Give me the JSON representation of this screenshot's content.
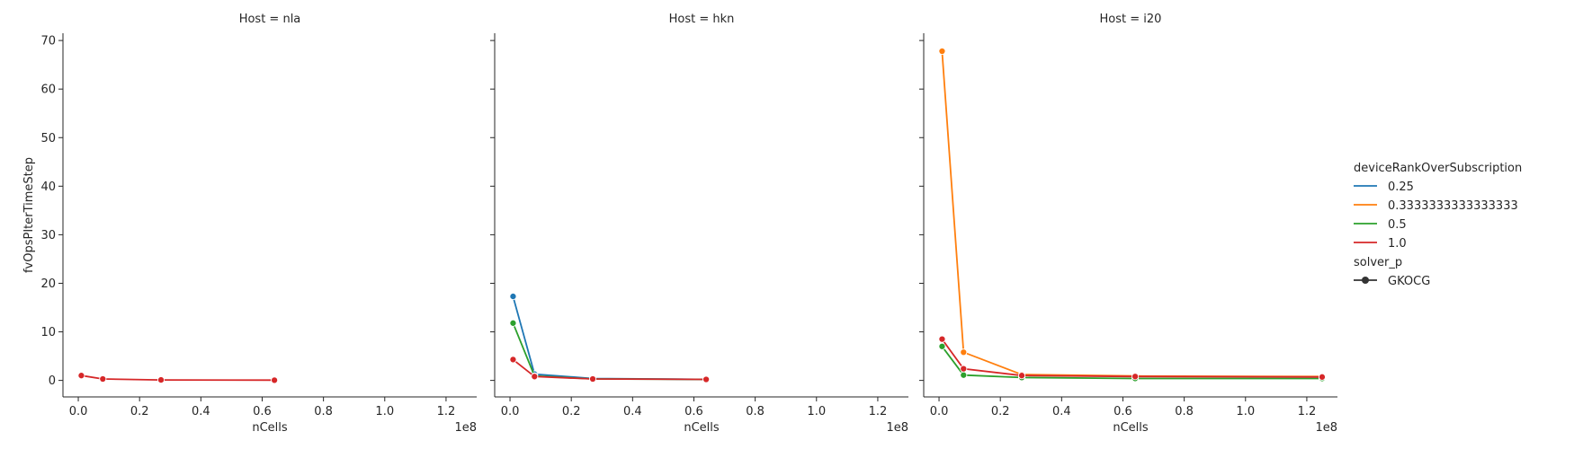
{
  "chart_data": {
    "type": "line",
    "xlabel": "nCells",
    "ylabel": "fvOpsPIterTimeStep",
    "x_offset_label": "1e8",
    "xlim": [
      -5000000,
      130000000
    ],
    "ylim": [
      -3.4,
      71.5
    ],
    "x_ticks": [
      0,
      20000000,
      40000000,
      60000000,
      80000000,
      100000000,
      120000000
    ],
    "x_tick_labels": [
      "0.0",
      "0.2",
      "0.4",
      "0.6",
      "0.8",
      "1.0",
      "1.2"
    ],
    "y_ticks": [
      0,
      10,
      20,
      30,
      40,
      50,
      60,
      70
    ],
    "y_tick_labels": [
      "0",
      "10",
      "20",
      "30",
      "40",
      "50",
      "60",
      "70"
    ],
    "legend": {
      "placement": "right",
      "hue_title": "deviceRankOverSubscription",
      "hue_entries": [
        {
          "label": "0.25",
          "color": "#1f77b4"
        },
        {
          "label": "0.3333333333333333",
          "color": "#ff7f0e"
        },
        {
          "label": "0.5",
          "color": "#2ca02c"
        },
        {
          "label": "1.0",
          "color": "#d62728"
        }
      ],
      "style_title": "solver_p",
      "style_entries": [
        {
          "label": "GKOCG",
          "color": "#333333"
        }
      ]
    },
    "panels": [
      {
        "title": "Host = nla",
        "series": [
          {
            "hue": "1.0",
            "color": "#d62728",
            "x": [
              1000000,
              8000000,
              27000000,
              64000000
            ],
            "y": [
              1.0,
              0.3,
              0.1,
              0.05
            ]
          }
        ]
      },
      {
        "title": "Host = hkn",
        "series": [
          {
            "hue": "0.25",
            "color": "#1f77b4",
            "x": [
              1000000,
              8000000,
              27000000,
              64000000
            ],
            "y": [
              17.3,
              1.3,
              0.4,
              0.2
            ]
          },
          {
            "hue": "0.5",
            "color": "#2ca02c",
            "x": [
              1000000,
              8000000,
              27000000,
              64000000
            ],
            "y": [
              11.8,
              0.9,
              0.3,
              0.2
            ]
          },
          {
            "hue": "1.0",
            "color": "#d62728",
            "x": [
              1000000,
              8000000,
              27000000,
              64000000
            ],
            "y": [
              4.3,
              0.8,
              0.3,
              0.2
            ]
          }
        ]
      },
      {
        "title": "Host = i20",
        "series": [
          {
            "hue": "0.3333333333333333",
            "color": "#ff7f0e",
            "x": [
              1000000,
              8000000,
              27000000,
              64000000,
              125000000
            ],
            "y": [
              67.8,
              5.8,
              1.2,
              0.9,
              0.8
            ]
          },
          {
            "hue": "0.5",
            "color": "#2ca02c",
            "x": [
              1000000,
              8000000,
              27000000,
              64000000,
              125000000
            ],
            "y": [
              7.0,
              1.1,
              0.6,
              0.4,
              0.4
            ]
          },
          {
            "hue": "1.0",
            "color": "#d62728",
            "x": [
              1000000,
              8000000,
              27000000,
              64000000,
              125000000
            ],
            "y": [
              8.5,
              2.4,
              1.0,
              0.8,
              0.7
            ]
          }
        ]
      }
    ]
  }
}
